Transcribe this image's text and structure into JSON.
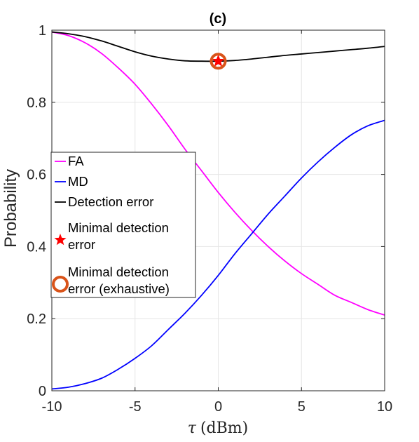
{
  "chart_data": {
    "type": "line",
    "title": "(c)",
    "xlabel": {
      "symbol": "τ",
      "unit": "(dBm)"
    },
    "ylabel": "Probability",
    "xlim": [
      -10,
      10
    ],
    "ylim": [
      0,
      1
    ],
    "xticks": [
      -10,
      -5,
      0,
      5,
      10
    ],
    "xtick_labels": [
      "-10",
      "-5",
      "0",
      "5",
      "10"
    ],
    "yticks": [
      0,
      0.2,
      0.4,
      0.6,
      0.8,
      1
    ],
    "ytick_labels": [
      "0",
      "0.2",
      "0.4",
      "0.6",
      "0.8",
      "1"
    ],
    "grid": true,
    "legend_position": "center-left",
    "x": [
      -10,
      -9,
      -8,
      -7,
      -6,
      -5,
      -4,
      -3,
      -2,
      -1,
      0,
      1,
      2,
      3,
      4,
      5,
      6,
      7,
      8,
      9,
      10
    ],
    "series": [
      {
        "name": "FA",
        "color": "#ff00ff",
        "values": [
          0.995,
          0.985,
          0.965,
          0.935,
          0.895,
          0.85,
          0.795,
          0.735,
          0.67,
          0.61,
          0.55,
          0.495,
          0.445,
          0.4,
          0.36,
          0.325,
          0.295,
          0.265,
          0.245,
          0.225,
          0.21
        ]
      },
      {
        "name": "MD",
        "color": "#0000ff",
        "values": [
          0.005,
          0.01,
          0.02,
          0.035,
          0.06,
          0.09,
          0.125,
          0.17,
          0.215,
          0.265,
          0.32,
          0.38,
          0.435,
          0.49,
          0.54,
          0.59,
          0.635,
          0.675,
          0.71,
          0.735,
          0.75
        ]
      },
      {
        "name": "Detection error",
        "color": "#000000",
        "values": [
          0.995,
          0.99,
          0.982,
          0.97,
          0.955,
          0.94,
          0.928,
          0.92,
          0.915,
          0.914,
          0.914,
          0.916,
          0.92,
          0.925,
          0.93,
          0.934,
          0.938,
          0.942,
          0.946,
          0.95,
          0.955
        ]
      }
    ],
    "markers": [
      {
        "name": "Minimal detection error",
        "shape": "star",
        "color": "#ff0000",
        "x": 0,
        "y": 0.914
      },
      {
        "name": "Minimal detection error (exhaustive)",
        "shape": "circle",
        "color": "#d95319",
        "x": 0,
        "y": 0.914
      }
    ],
    "legend": [
      {
        "kind": "line",
        "color": "#ff00ff",
        "lines": [
          "FA"
        ]
      },
      {
        "kind": "line",
        "color": "#0000ff",
        "lines": [
          "MD"
        ]
      },
      {
        "kind": "line",
        "color": "#000000",
        "lines": [
          "Detection error"
        ]
      },
      {
        "kind": "star",
        "color": "#ff0000",
        "lines": [
          "Minimal detection",
          "error"
        ]
      },
      {
        "kind": "circle",
        "color": "#d95319",
        "lines": [
          "Minimal detection",
          "error (exhaustive)"
        ]
      }
    ]
  }
}
